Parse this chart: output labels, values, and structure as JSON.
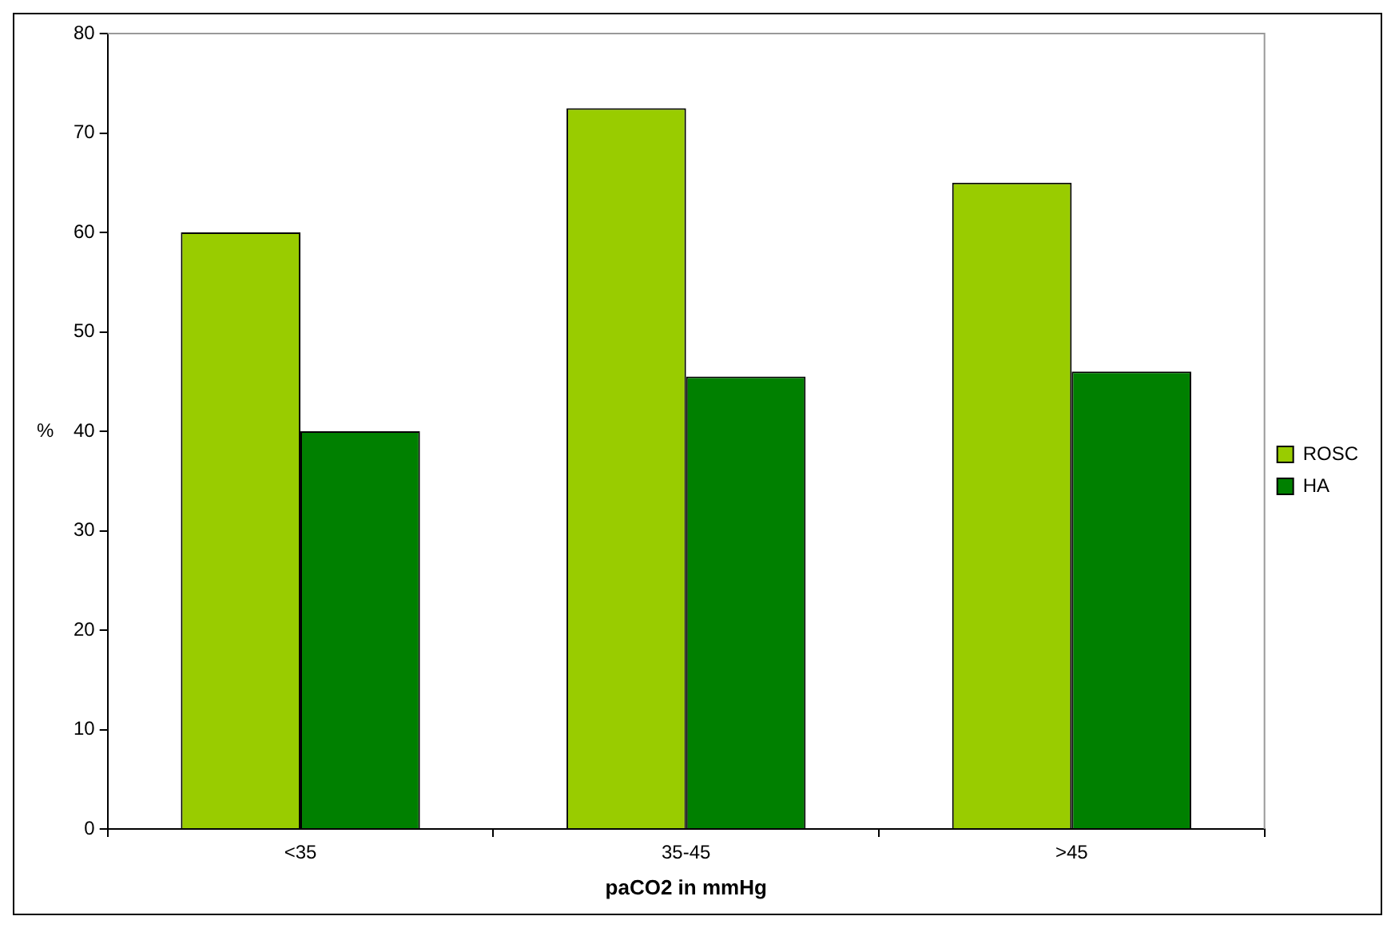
{
  "chart_data": {
    "type": "bar",
    "xlabel": "paCO2 in mmHg",
    "ylabel": "%",
    "categories": [
      "<35",
      "35-45",
      ">45"
    ],
    "series": [
      {
        "name": "ROSC",
        "color": "#99cc00",
        "values": [
          60,
          72.5,
          65
        ]
      },
      {
        "name": "HA",
        "color": "#008000",
        "values": [
          40,
          45.5,
          46
        ]
      }
    ],
    "ylim": [
      0,
      80
    ],
    "yticks": [
      0,
      10,
      20,
      30,
      40,
      50,
      60,
      70,
      80
    ],
    "grid": false,
    "legend": "right"
  }
}
